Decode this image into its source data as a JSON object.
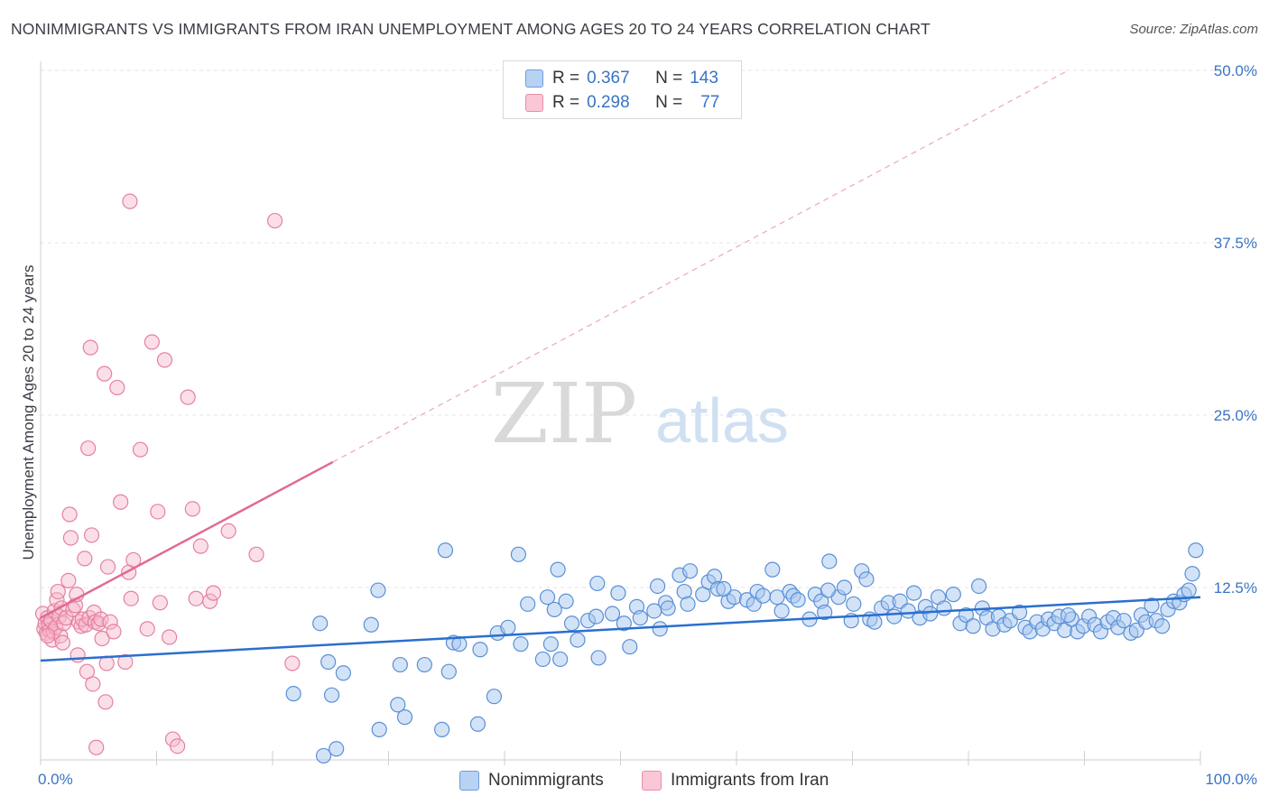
{
  "title": "NONIMMIGRANTS VS IMMIGRANTS FROM IRAN UNEMPLOYMENT AMONG AGES 20 TO 24 YEARS CORRELATION CHART",
  "source": "Source: ZipAtlas.com",
  "watermark": {
    "zip": "ZIP",
    "atlas": "atlas"
  },
  "legend_top": {
    "rows": [
      {
        "r_label": "R =",
        "r_value": "0.367",
        "n_label": "N =",
        "n_value": "143"
      },
      {
        "r_label": "R =",
        "r_value": "0.298",
        "n_label": "N =",
        "n_value": "77"
      }
    ]
  },
  "legend_bottom": [
    "Nonimmigrants",
    "Immigrants from Iran"
  ],
  "colors": {
    "blue_fill": "#a8c8f0",
    "blue_stroke": "#5a8fd6",
    "blue_line": "#2a6fce",
    "pink_fill": "#f6b8cb",
    "pink_stroke": "#e5809f",
    "pink_line": "#e06a92",
    "tick_label": "#3a74c4",
    "grid": "#e6e6e6"
  },
  "chart_data": {
    "type": "scatter",
    "title": "NONIMMIGRANTS VS IMMIGRANTS FROM IRAN UNEMPLOYMENT AMONG AGES 20 TO 24 YEARS CORRELATION CHART",
    "xlabel": "",
    "ylabel": "Unemployment Among Ages 20 to 24 years",
    "xlim": [
      0,
      100
    ],
    "ylim": [
      0,
      50
    ],
    "x_tick_labels": [
      "0.0%",
      "100.0%"
    ],
    "y_ticks": [
      12.5,
      25.0,
      37.5,
      50.0
    ],
    "y_tick_labels": [
      "12.5%",
      "25.0%",
      "37.5%",
      "50.0%"
    ],
    "grid": true,
    "legend_position": "top-center",
    "series": [
      {
        "name": "Nonimmigrants",
        "r": 0.367,
        "n": 143,
        "trend": {
          "x": [
            0,
            100
          ],
          "y": [
            7.2,
            11.8
          ],
          "style": "solid"
        },
        "points": [
          [
            24.4,
            0.3
          ],
          [
            25.5,
            0.8
          ],
          [
            29.2,
            2.2
          ],
          [
            34.6,
            2.2
          ],
          [
            31.4,
            3.1
          ],
          [
            37.7,
            2.6
          ],
          [
            21.8,
            4.8
          ],
          [
            25.1,
            4.7
          ],
          [
            30.8,
            4.0
          ],
          [
            39.1,
            4.6
          ],
          [
            24.8,
            7.1
          ],
          [
            26.1,
            6.3
          ],
          [
            31.0,
            6.9
          ],
          [
            33.1,
            6.9
          ],
          [
            35.2,
            6.4
          ],
          [
            41.4,
            8.4
          ],
          [
            43.3,
            7.3
          ],
          [
            44.8,
            7.3
          ],
          [
            48.1,
            7.4
          ],
          [
            50.8,
            8.2
          ],
          [
            24.1,
            9.9
          ],
          [
            28.5,
            9.8
          ],
          [
            35.6,
            8.5
          ],
          [
            36.1,
            8.4
          ],
          [
            37.9,
            8.0
          ],
          [
            39.4,
            9.2
          ],
          [
            40.3,
            9.6
          ],
          [
            44.0,
            8.4
          ],
          [
            46.3,
            8.7
          ],
          [
            29.1,
            12.3
          ],
          [
            34.9,
            15.2
          ],
          [
            41.2,
            14.9
          ],
          [
            43.7,
            11.8
          ],
          [
            44.3,
            10.9
          ],
          [
            44.6,
            13.8
          ],
          [
            45.3,
            11.5
          ],
          [
            45.8,
            9.9
          ],
          [
            47.2,
            10.1
          ],
          [
            48.0,
            12.8
          ],
          [
            47.9,
            10.4
          ],
          [
            49.3,
            10.6
          ],
          [
            49.8,
            12.1
          ],
          [
            50.3,
            9.9
          ],
          [
            51.4,
            11.1
          ],
          [
            51.7,
            10.3
          ],
          [
            52.9,
            10.8
          ],
          [
            53.4,
            9.5
          ],
          [
            53.9,
            11.4
          ],
          [
            54.1,
            11.0
          ],
          [
            55.1,
            13.4
          ],
          [
            55.5,
            12.2
          ],
          [
            55.8,
            11.3
          ],
          [
            56.0,
            13.7
          ],
          [
            57.1,
            12.0
          ],
          [
            57.6,
            12.9
          ],
          [
            58.1,
            13.3
          ],
          [
            58.4,
            12.4
          ],
          [
            59.3,
            11.5
          ],
          [
            59.8,
            11.8
          ],
          [
            60.9,
            11.6
          ],
          [
            61.5,
            11.3
          ],
          [
            61.8,
            12.2
          ],
          [
            62.3,
            11.9
          ],
          [
            63.5,
            11.8
          ],
          [
            63.9,
            10.8
          ],
          [
            64.6,
            12.2
          ],
          [
            64.9,
            11.9
          ],
          [
            65.3,
            11.6
          ],
          [
            66.3,
            10.2
          ],
          [
            66.8,
            12.0
          ],
          [
            67.3,
            11.5
          ],
          [
            67.6,
            10.7
          ],
          [
            68.0,
            14.4
          ],
          [
            68.8,
            11.8
          ],
          [
            69.3,
            12.5
          ],
          [
            69.9,
            10.1
          ],
          [
            70.1,
            11.3
          ],
          [
            70.8,
            13.7
          ],
          [
            71.5,
            10.2
          ],
          [
            71.9,
            10.0
          ],
          [
            72.5,
            11.0
          ],
          [
            73.1,
            11.4
          ],
          [
            73.6,
            10.4
          ],
          [
            74.1,
            11.5
          ],
          [
            74.8,
            10.8
          ],
          [
            75.3,
            12.1
          ],
          [
            75.8,
            10.3
          ],
          [
            76.3,
            11.1
          ],
          [
            76.7,
            10.6
          ],
          [
            77.4,
            11.8
          ],
          [
            77.9,
            11.0
          ],
          [
            78.7,
            12.0
          ],
          [
            79.3,
            9.9
          ],
          [
            79.8,
            10.5
          ],
          [
            80.4,
            9.7
          ],
          [
            80.9,
            12.6
          ],
          [
            81.2,
            11.0
          ],
          [
            81.6,
            10.3
          ],
          [
            82.1,
            9.5
          ],
          [
            82.6,
            10.4
          ],
          [
            83.1,
            9.8
          ],
          [
            83.6,
            10.1
          ],
          [
            84.4,
            10.7
          ],
          [
            84.9,
            9.6
          ],
          [
            85.3,
            9.3
          ],
          [
            85.9,
            10.0
          ],
          [
            86.4,
            9.5
          ],
          [
            86.9,
            10.2
          ],
          [
            87.4,
            9.9
          ],
          [
            87.8,
            10.4
          ],
          [
            88.3,
            9.4
          ],
          [
            88.9,
            10.2
          ],
          [
            89.4,
            9.3
          ],
          [
            89.9,
            9.7
          ],
          [
            90.4,
            10.4
          ],
          [
            90.9,
            9.8
          ],
          [
            91.4,
            9.3
          ],
          [
            92.0,
            10.0
          ],
          [
            92.5,
            10.3
          ],
          [
            92.9,
            9.6
          ],
          [
            93.4,
            10.1
          ],
          [
            94.0,
            9.2
          ],
          [
            94.5,
            9.4
          ],
          [
            94.9,
            10.5
          ],
          [
            95.3,
            10.0
          ],
          [
            95.8,
            11.2
          ],
          [
            96.2,
            10.1
          ],
          [
            96.7,
            9.7
          ],
          [
            97.2,
            10.9
          ],
          [
            97.7,
            11.5
          ],
          [
            98.2,
            11.4
          ],
          [
            98.6,
            12.0
          ],
          [
            99.0,
            12.3
          ],
          [
            99.3,
            13.5
          ],
          [
            99.6,
            15.2
          ],
          [
            88.6,
            10.5
          ],
          [
            71.2,
            13.1
          ],
          [
            67.9,
            12.3
          ],
          [
            63.1,
            13.8
          ],
          [
            58.9,
            12.4
          ],
          [
            53.2,
            12.6
          ],
          [
            42.0,
            11.3
          ]
        ]
      },
      {
        "name": "Immigrants from Iran",
        "r": 0.298,
        "n": 77,
        "trend": {
          "x": [
            0,
            25.2
          ],
          "y": [
            10.3,
            21.6
          ],
          "style": "solid",
          "extension": {
            "x": [
              25.2,
              88.6
            ],
            "y": [
              21.6,
              50.0
            ],
            "style": "dashed"
          }
        },
        "points": [
          [
            0.2,
            10.6
          ],
          [
            0.3,
            9.5
          ],
          [
            0.4,
            9.9
          ],
          [
            0.5,
            9.2
          ],
          [
            0.6,
            10.3
          ],
          [
            0.7,
            9.8
          ],
          [
            0.8,
            9.4
          ],
          [
            0.9,
            10.1
          ],
          [
            1.0,
            8.7
          ],
          [
            1.1,
            9.3
          ],
          [
            1.2,
            10.8
          ],
          [
            1.3,
            9.6
          ],
          [
            1.4,
            11.6
          ],
          [
            1.5,
            12.2
          ],
          [
            1.6,
            10.4
          ],
          [
            1.7,
            9.0
          ],
          [
            1.8,
            11.0
          ],
          [
            1.9,
            8.5
          ],
          [
            2.0,
            9.9
          ],
          [
            2.2,
            10.3
          ],
          [
            2.4,
            13.0
          ],
          [
            2.5,
            17.8
          ],
          [
            2.6,
            16.1
          ],
          [
            2.8,
            10.9
          ],
          [
            3.0,
            11.2
          ],
          [
            3.1,
            12.0
          ],
          [
            3.2,
            7.6
          ],
          [
            3.3,
            10.0
          ],
          [
            3.5,
            9.7
          ],
          [
            3.6,
            10.2
          ],
          [
            3.8,
            14.6
          ],
          [
            3.9,
            9.8
          ],
          [
            4.0,
            6.4
          ],
          [
            4.1,
            22.6
          ],
          [
            4.2,
            10.3
          ],
          [
            4.3,
            29.9
          ],
          [
            4.4,
            16.3
          ],
          [
            4.5,
            5.5
          ],
          [
            4.6,
            10.7
          ],
          [
            4.7,
            10.0
          ],
          [
            4.8,
            0.9
          ],
          [
            5.0,
            9.9
          ],
          [
            5.2,
            10.2
          ],
          [
            5.3,
            8.8
          ],
          [
            5.5,
            28.0
          ],
          [
            5.6,
            4.2
          ],
          [
            5.7,
            7.0
          ],
          [
            5.8,
            14.0
          ],
          [
            6.0,
            10.0
          ],
          [
            6.3,
            9.3
          ],
          [
            6.6,
            27.0
          ],
          [
            6.9,
            18.7
          ],
          [
            7.3,
            7.1
          ],
          [
            7.6,
            13.6
          ],
          [
            7.7,
            40.5
          ],
          [
            7.8,
            11.7
          ],
          [
            8.0,
            14.5
          ],
          [
            8.6,
            22.5
          ],
          [
            9.2,
            9.5
          ],
          [
            9.6,
            30.3
          ],
          [
            10.1,
            18.0
          ],
          [
            10.3,
            11.4
          ],
          [
            10.7,
            29.0
          ],
          [
            11.1,
            8.9
          ],
          [
            11.4,
            1.5
          ],
          [
            11.8,
            1.0
          ],
          [
            12.7,
            26.3
          ],
          [
            13.1,
            18.2
          ],
          [
            13.4,
            11.7
          ],
          [
            13.8,
            15.5
          ],
          [
            14.6,
            11.5
          ],
          [
            14.9,
            12.1
          ],
          [
            16.2,
            16.6
          ],
          [
            18.6,
            14.9
          ],
          [
            20.2,
            39.1
          ],
          [
            21.7,
            7.0
          ],
          [
            0.6,
            9.0
          ]
        ]
      }
    ]
  }
}
